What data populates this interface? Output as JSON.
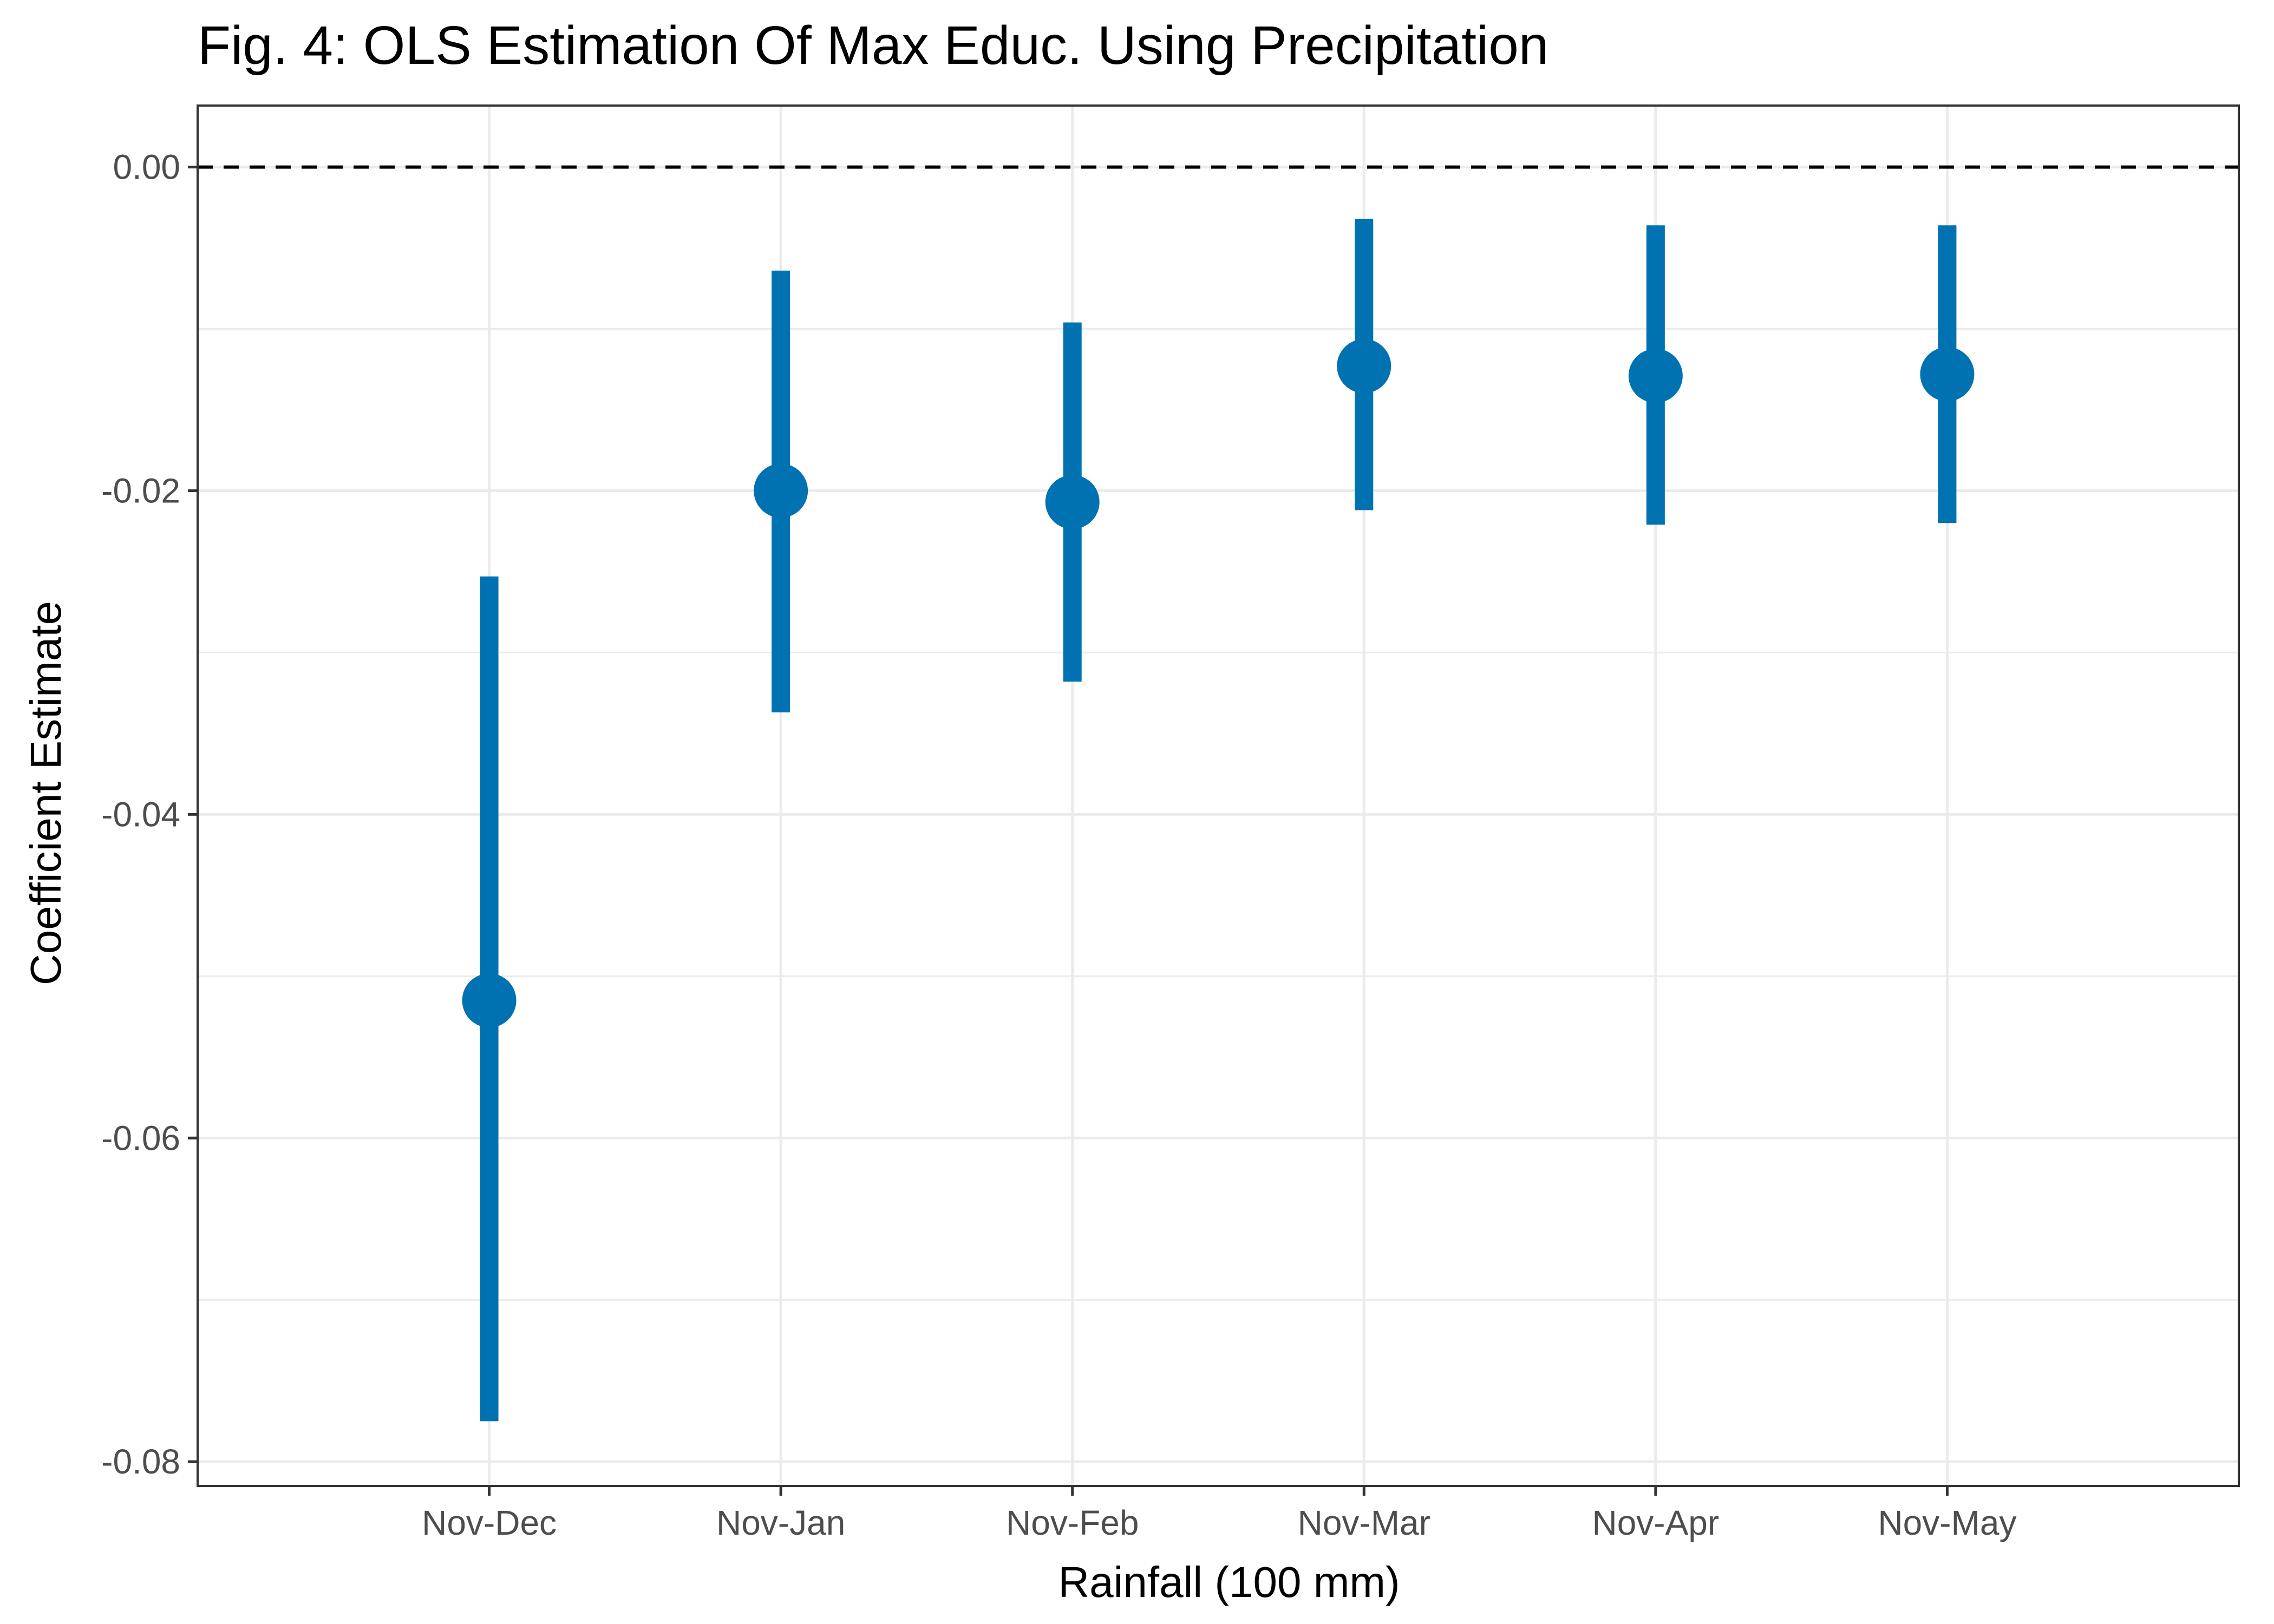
{
  "chart_data": {
    "type": "errorbar",
    "title": "Fig. 4: OLS Estimation Of Max Educ. Using Precipitation",
    "xlabel": "Rainfall (100 mm)",
    "ylabel": "Coefficient Estimate",
    "categories": [
      "Nov-Dec",
      "Nov-Jan",
      "Nov-Feb",
      "Nov-Mar",
      "Nov-Apr",
      "Nov-May"
    ],
    "estimates": [
      -0.0515,
      -0.02,
      -0.0207,
      -0.0123,
      -0.0129,
      -0.0128
    ],
    "ci_lower": [
      -0.0775,
      -0.0337,
      -0.0318,
      -0.0212,
      -0.0221,
      -0.022
    ],
    "ci_upper": [
      -0.0253,
      -0.0064,
      -0.0096,
      -0.0032,
      -0.0036,
      -0.0036
    ],
    "reference_line": 0.0,
    "ylim": [
      -0.0815,
      0.0038
    ],
    "yticks": [
      0.0,
      -0.02,
      -0.04,
      -0.06,
      -0.08
    ],
    "ytick_labels": [
      "0.00",
      "-0.02",
      "-0.04",
      "-0.06",
      "-0.08"
    ],
    "grid": true,
    "legend": "none",
    "colors": {
      "marker": "#0072B2",
      "grid": "#ebebeb",
      "panel_border": "#333333",
      "reference_line": "#000000",
      "tick_label": "#4d4d4d"
    }
  }
}
